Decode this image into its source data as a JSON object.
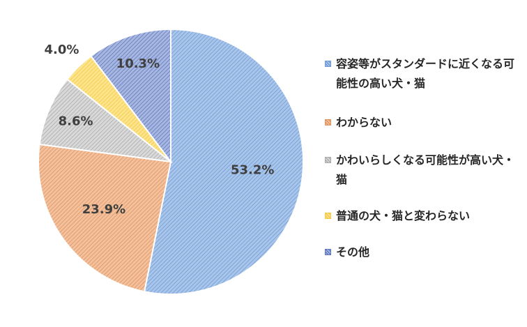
{
  "chart_data": {
    "type": "pie",
    "title": "",
    "start": "12 o'clock",
    "direction": "clockwise",
    "legend_position": "right",
    "slices": [
      {
        "name": "容姿等がスタンダードに近くなる可能性の高い犬・猫",
        "value": 53.2,
        "label": "53.2%",
        "color": "#a9c6ea",
        "pattern": "#6f9ad6"
      },
      {
        "name": "わからない",
        "value": 23.9,
        "label": "23.9%",
        "color": "#f3c19d",
        "pattern": "#e0935e"
      },
      {
        "name": "かわいらしくなる可能性が高い犬・猫",
        "value": 8.6,
        "label": "8.6%",
        "color": "#d9d9d9",
        "pattern": "#ababab"
      },
      {
        "name": "普通の犬・猫と変わらない",
        "value": 4.0,
        "label": "4.0%",
        "color": "#fde48a",
        "pattern": "#f2c94a"
      },
      {
        "name": "その他",
        "value": 10.3,
        "label": "10.3%",
        "color": "#a7b7e0",
        "pattern": "#5f77bf"
      }
    ]
  }
}
